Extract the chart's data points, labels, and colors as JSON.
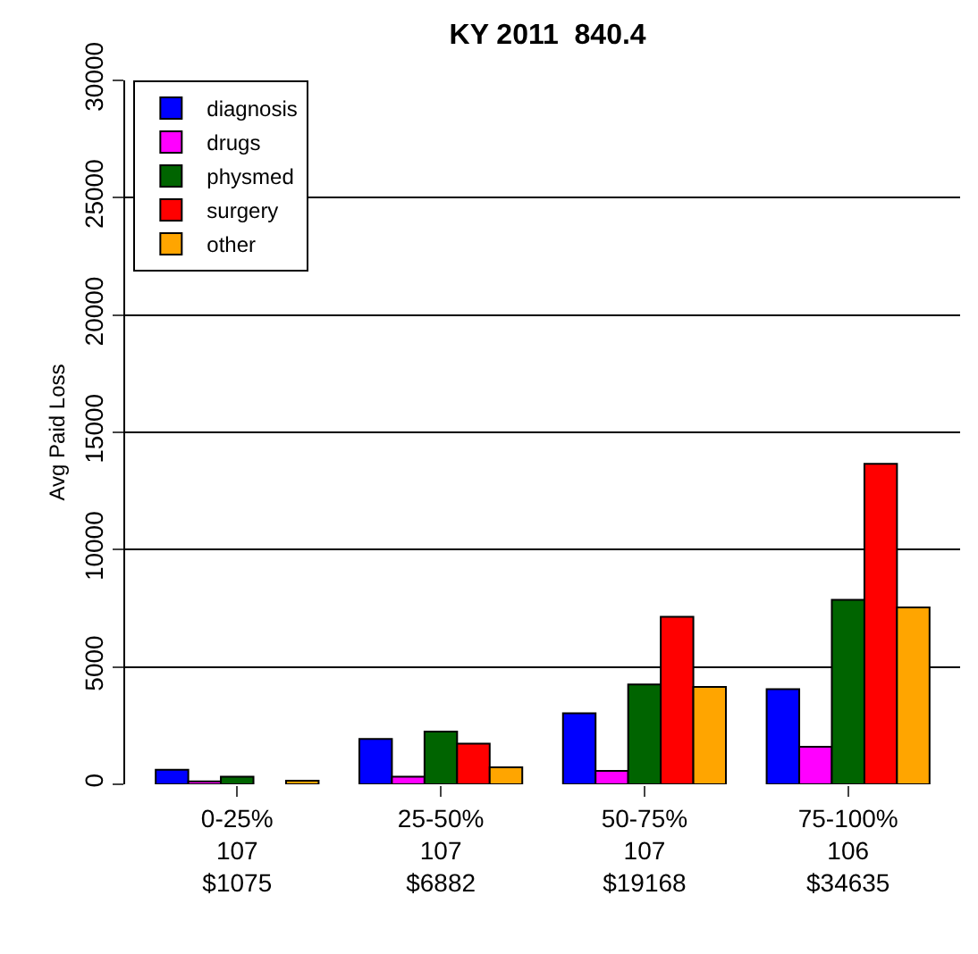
{
  "chart_data": {
    "type": "bar",
    "title": "KY 2011  840.4",
    "ylabel": "Avg Paid Loss",
    "categories": [
      "0-25%\n107\n$1075",
      "25-50%\n107\n$6882",
      "50-75%\n107\n$19168",
      "75-100%\n106\n$34635"
    ],
    "series": [
      {
        "name": "diagnosis",
        "color": "#0000ff",
        "values": [
          620,
          1930,
          3030,
          4050
        ]
      },
      {
        "name": "drugs",
        "color": "#ff00ff",
        "values": [
          120,
          320,
          570,
          1600
        ]
      },
      {
        "name": "physmed",
        "color": "#006400",
        "values": [
          320,
          2250,
          4250,
          7860
        ]
      },
      {
        "name": "surgery",
        "color": "#ff0000",
        "values": [
          null,
          1730,
          7140,
          13660
        ]
      },
      {
        "name": "other",
        "color": "#ffa500",
        "values": [
          150,
          720,
          4150,
          7540
        ]
      }
    ],
    "ylim": [
      0,
      30000
    ],
    "yticks": [
      0,
      5000,
      10000,
      15000,
      20000,
      25000,
      30000
    ],
    "grid": "y",
    "legend": "top left"
  }
}
